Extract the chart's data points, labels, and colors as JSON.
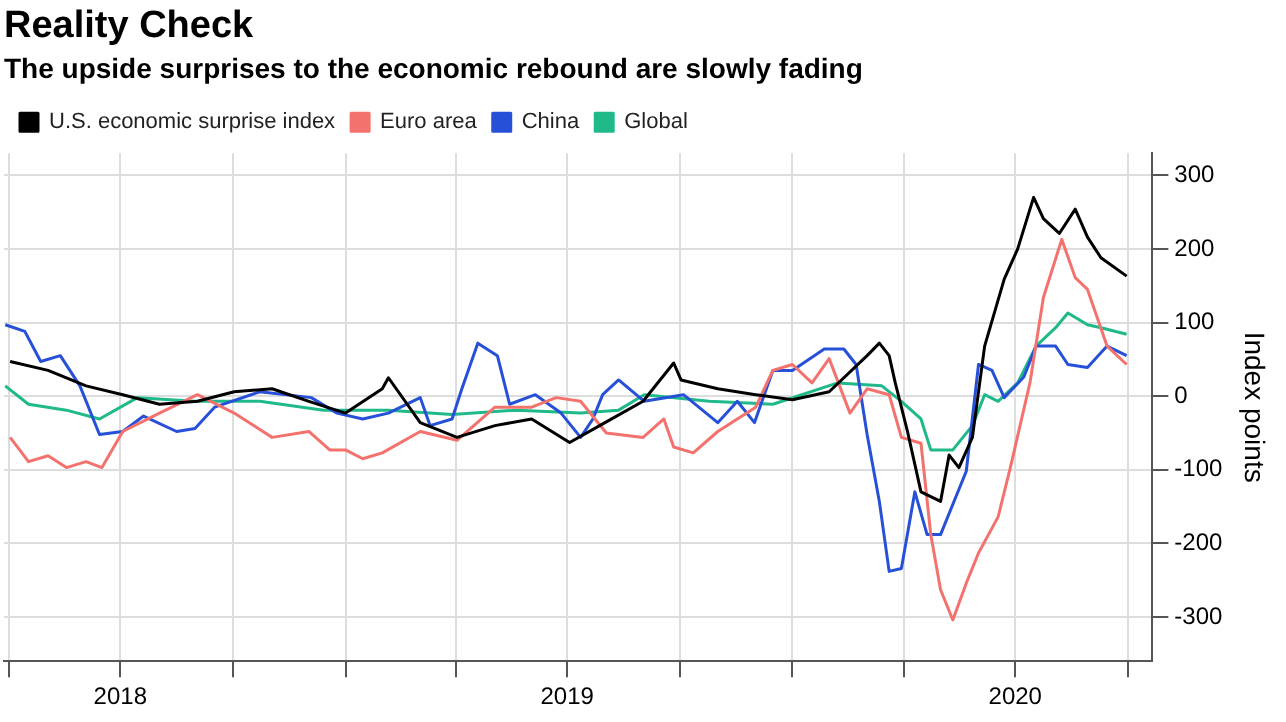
{
  "chart_data": {
    "type": "line",
    "title": "Reality Check",
    "subtitle": "The upside surprises to the economic rebound are slowly fading",
    "ylabel": "Index points",
    "xlim": [
      "2018-03-28",
      "2020-10-21"
    ],
    "xticks": [
      {
        "value": "2018-04-01",
        "label": null
      },
      {
        "value": "2018-07-01",
        "label": "2018"
      },
      {
        "value": "2018-10-01",
        "label": null
      },
      {
        "value": "2019-01-01",
        "label": null
      },
      {
        "value": "2019-04-01",
        "label": null
      },
      {
        "value": "2019-07-01",
        "label": "2019"
      },
      {
        "value": "2019-10-01",
        "label": null
      },
      {
        "value": "2020-01-01",
        "label": null
      },
      {
        "value": "2020-04-01",
        "label": null
      },
      {
        "value": "2020-07-01",
        "label": "2020"
      },
      {
        "value": "2020-10-01",
        "label": null
      }
    ],
    "ylim": [
      -360,
      330
    ],
    "yticks": [
      -300,
      -200,
      -100,
      0,
      100,
      200,
      300
    ],
    "grid": true,
    "legend": "top left",
    "marker": "none",
    "line_style": "solid",
    "series": [
      {
        "name": "U.S. economic surprise index",
        "color": "#000000",
        "x": [
          "2018-04-02",
          "2018-05-03",
          "2018-06-03",
          "2018-07-03",
          "2018-08-02",
          "2018-09-02",
          "2018-10-02",
          "2018-11-02",
          "2018-12-02",
          "2019-01-01",
          "2019-01-31",
          "2019-02-05",
          "2019-03-03",
          "2019-04-02",
          "2019-05-03",
          "2019-06-02",
          "2019-07-03",
          "2019-08-02",
          "2019-09-01",
          "2019-09-26",
          "2019-10-02",
          "2019-11-01",
          "2019-12-02",
          "2020-01-01",
          "2020-01-31",
          "2020-03-02",
          "2020-03-12",
          "2020-03-20",
          "2020-03-25",
          "2020-04-04",
          "2020-04-15",
          "2020-05-01",
          "2020-05-08",
          "2020-05-16",
          "2020-05-27",
          "2020-06-06",
          "2020-06-22",
          "2020-07-03",
          "2020-07-16",
          "2020-07-24",
          "2020-08-06",
          "2020-08-19",
          "2020-08-29",
          "2020-09-09",
          "2020-09-30"
        ],
        "values": [
          47,
          35,
          14,
          2,
          -11,
          -7,
          6,
          10,
          -7,
          -23,
          10,
          25,
          -36,
          -56,
          -40,
          -31,
          -63,
          -35,
          -7,
          45,
          22,
          10,
          2,
          -5,
          6,
          55,
          72,
          55,
          18,
          -48,
          -130,
          -143,
          -80,
          -97,
          -56,
          68,
          159,
          200,
          270,
          241,
          221,
          254,
          216,
          188,
          163
        ]
      },
      {
        "name": "Euro area",
        "color": "#f4726e",
        "x": [
          "2018-04-02",
          "2018-04-17",
          "2018-05-03",
          "2018-05-18",
          "2018-06-03",
          "2018-06-16",
          "2018-07-03",
          "2018-08-02",
          "2018-09-02",
          "2018-10-02",
          "2018-11-02",
          "2018-12-02",
          "2018-12-19",
          "2019-01-01",
          "2019-01-15",
          "2019-01-31",
          "2019-03-03",
          "2019-04-02",
          "2019-05-03",
          "2019-06-02",
          "2019-06-22",
          "2019-07-12",
          "2019-08-02",
          "2019-09-01",
          "2019-09-18",
          "2019-09-26",
          "2019-10-12",
          "2019-11-01",
          "2019-12-02",
          "2019-12-16",
          "2020-01-01",
          "2020-01-17",
          "2020-01-31",
          "2020-02-17",
          "2020-03-02",
          "2020-03-20",
          "2020-03-30",
          "2020-04-15",
          "2020-04-23",
          "2020-05-01",
          "2020-05-11",
          "2020-05-22",
          "2020-06-01",
          "2020-06-17",
          "2020-06-27",
          "2020-07-13",
          "2020-07-24",
          "2020-08-08",
          "2020-08-19",
          "2020-08-29",
          "2020-09-14",
          "2020-09-30"
        ],
        "values": [
          -56,
          -89,
          -81,
          -97,
          -89,
          -97,
          -48,
          -23,
          2,
          -23,
          -56,
          -48,
          -73,
          -73,
          -85,
          -77,
          -48,
          -60,
          -15,
          -15,
          -2,
          -7,
          -50,
          -56,
          -31,
          -69,
          -77,
          -48,
          -15,
          35,
          43,
          18,
          51,
          -23,
          10,
          2,
          -56,
          -64,
          -188,
          -263,
          -304,
          -254,
          -213,
          -164,
          -97,
          18,
          134,
          213,
          161,
          145,
          68,
          43
        ]
      },
      {
        "name": "China",
        "color": "#2750d8",
        "x": [
          "2018-03-29",
          "2018-04-14",
          "2018-04-27",
          "2018-05-13",
          "2018-05-29",
          "2018-06-14",
          "2018-07-03",
          "2018-07-20",
          "2018-08-16",
          "2018-08-31",
          "2018-09-16",
          "2018-10-23",
          "2018-12-04",
          "2018-12-25",
          "2019-01-15",
          "2019-02-05",
          "2019-03-03",
          "2019-03-11",
          "2019-03-29",
          "2019-04-06",
          "2019-04-19",
          "2019-05-05",
          "2019-05-15",
          "2019-06-05",
          "2019-06-26",
          "2019-07-12",
          "2019-07-22",
          "2019-07-30",
          "2019-08-12",
          "2019-09-02",
          "2019-10-04",
          "2019-11-01",
          "2019-11-17",
          "2019-12-01",
          "2019-12-16",
          "2020-01-01",
          "2020-01-27",
          "2020-02-12",
          "2020-02-22",
          "2020-03-02",
          "2020-03-12",
          "2020-03-20",
          "2020-03-30",
          "2020-04-10",
          "2020-04-20",
          "2020-05-01",
          "2020-05-22",
          "2020-06-01",
          "2020-06-12",
          "2020-06-22",
          "2020-07-08",
          "2020-07-18",
          "2020-08-03",
          "2020-08-13",
          "2020-08-29",
          "2020-09-14",
          "2020-09-30"
        ],
        "values": [
          97,
          88,
          47,
          55,
          14,
          -52,
          -48,
          -27,
          -48,
          -44,
          -15,
          6,
          -2,
          -23,
          -31,
          -23,
          -2,
          -40,
          -31,
          10,
          72,
          55,
          -11,
          2,
          -23,
          -56,
          -31,
          2,
          22,
          -7,
          2,
          -36,
          -7,
          -36,
          35,
          35,
          64,
          64,
          43,
          -52,
          -143,
          -238,
          -234,
          -130,
          -188,
          -188,
          -102,
          43,
          35,
          -2,
          26,
          68,
          68,
          43,
          39,
          68,
          55
        ]
      },
      {
        "name": "Global",
        "color": "#20b98a",
        "x": [
          "2018-03-29",
          "2018-04-17",
          "2018-05-18",
          "2018-06-14",
          "2018-07-15",
          "2018-08-31",
          "2018-10-23",
          "2018-12-14",
          "2019-02-05",
          "2019-03-29",
          "2019-05-21",
          "2019-07-12",
          "2019-08-12",
          "2019-09-02",
          "2019-10-25",
          "2019-12-16",
          "2020-02-07",
          "2020-03-14",
          "2020-03-30",
          "2020-04-15",
          "2020-04-23",
          "2020-05-11",
          "2020-05-27",
          "2020-06-06",
          "2020-06-17",
          "2020-07-03",
          "2020-07-18",
          "2020-08-03",
          "2020-08-13",
          "2020-08-29",
          "2020-09-09",
          "2020-09-30"
        ],
        "values": [
          14,
          -11,
          -19,
          -31,
          -2,
          -7,
          -7,
          -19,
          -19,
          -25,
          -19,
          -23,
          -19,
          2,
          -7,
          -11,
          18,
          14,
          -7,
          -31,
          -73,
          -73,
          -40,
          2,
          -7,
          18,
          68,
          93,
          113,
          97,
          93,
          84
        ]
      }
    ]
  }
}
